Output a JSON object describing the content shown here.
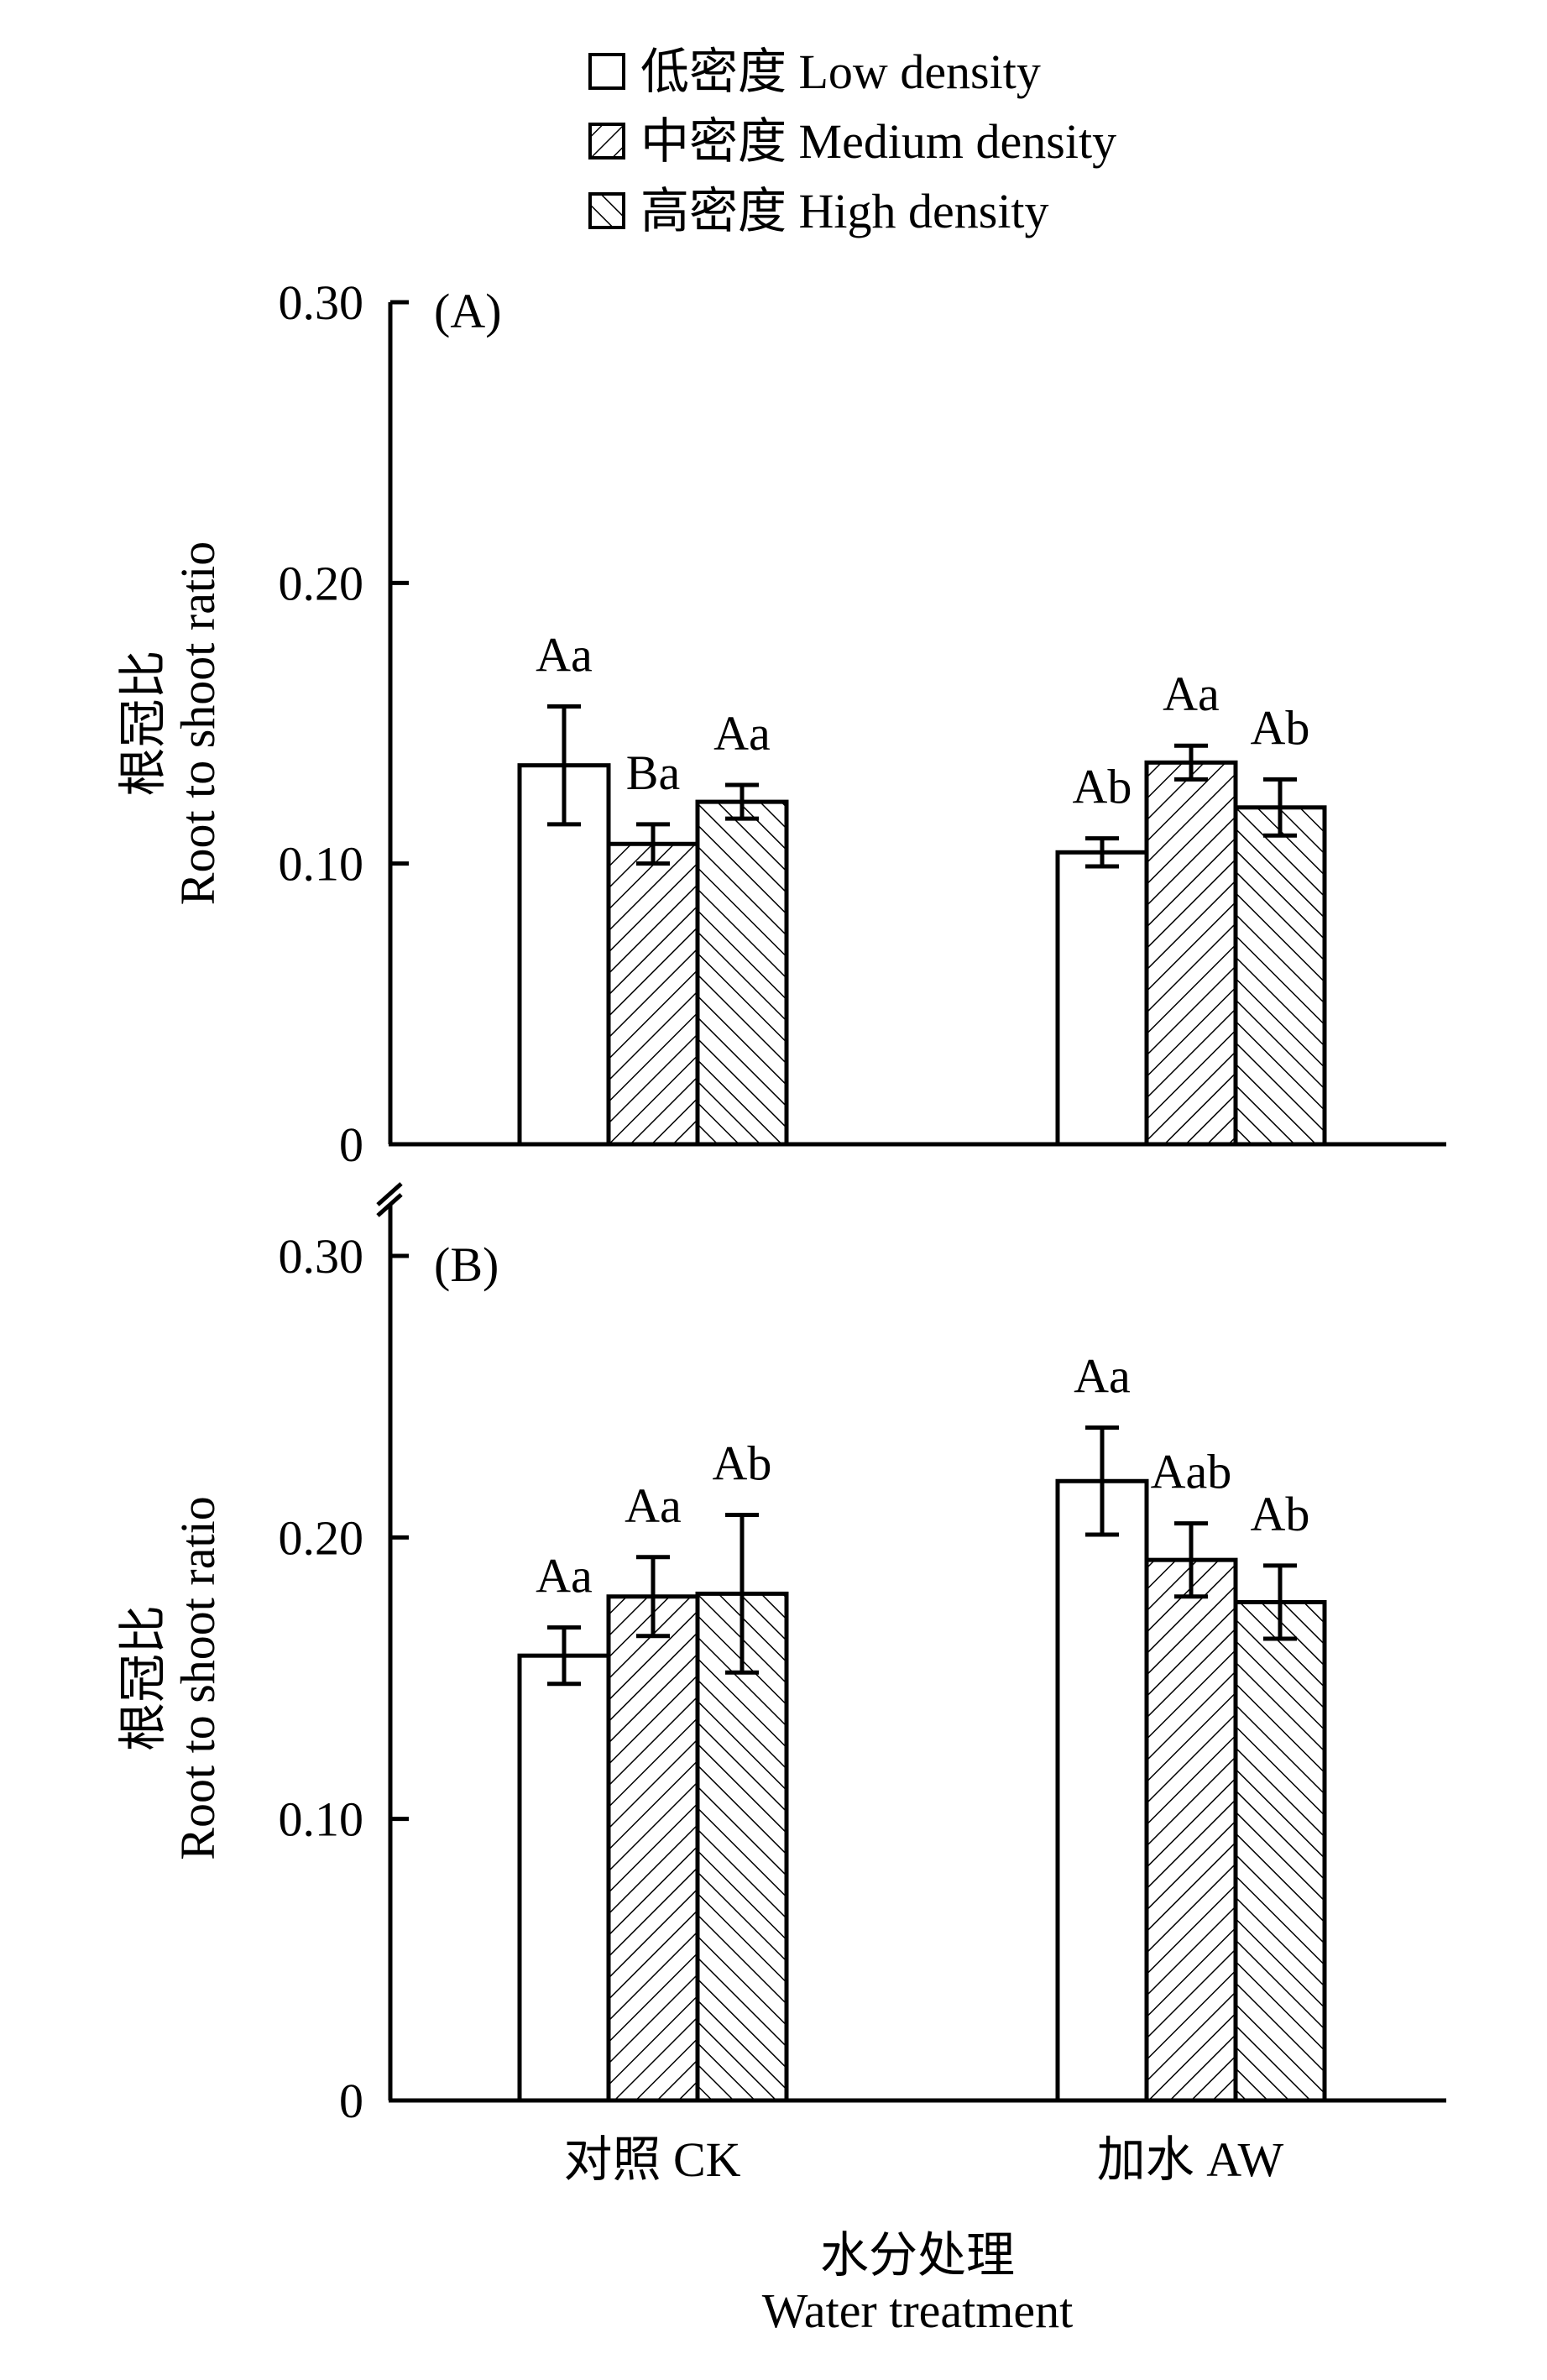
{
  "chart_data": [
    {
      "type": "bar",
      "panel_label": "(A)",
      "categories": [
        "对照 CK",
        "加水 AW"
      ],
      "ylabel_cn": "根冠比",
      "ylabel": "Root to shoot ratio",
      "ylim": [
        0,
        0.3
      ],
      "yticks": [
        "0",
        "0.10",
        "0.20",
        "0.30"
      ],
      "series": [
        {
          "name": "低密度 Low density",
          "pattern": "none",
          "values": [
            0.135,
            0.104
          ],
          "errors": [
            0.021,
            0.005
          ],
          "letters": [
            "Aa",
            "Ab"
          ]
        },
        {
          "name": "中密度 Medium density",
          "pattern": "forward",
          "values": [
            0.107,
            0.136
          ],
          "errors": [
            0.007,
            0.006
          ],
          "letters": [
            "Ba",
            "Aa"
          ]
        },
        {
          "name": "高密度 High density",
          "pattern": "backward",
          "values": [
            0.122,
            0.12
          ],
          "errors": [
            0.006,
            0.01
          ],
          "letters": [
            "Aa",
            "Ab"
          ]
        }
      ]
    },
    {
      "type": "bar",
      "panel_label": "(B)",
      "categories": [
        "对照 CK",
        "加水 AW"
      ],
      "ylabel_cn": "根冠比",
      "ylabel": "Root to shoot ratio",
      "ylim": [
        0,
        0.3
      ],
      "yticks": [
        "0",
        "0.10",
        "0.20",
        "0.30"
      ],
      "series": [
        {
          "name": "低密度 Low density",
          "pattern": "none",
          "values": [
            0.158,
            0.22
          ],
          "errors": [
            0.01,
            0.019
          ],
          "letters": [
            "Aa",
            "Aa"
          ]
        },
        {
          "name": "中密度 Medium density",
          "pattern": "forward",
          "values": [
            0.179,
            0.192
          ],
          "errors": [
            0.014,
            0.013
          ],
          "letters": [
            "Aa",
            "Aab"
          ]
        },
        {
          "name": "高密度 High density",
          "pattern": "backward",
          "values": [
            0.18,
            0.177
          ],
          "errors": [
            0.028,
            0.013
          ],
          "letters": [
            "Ab",
            "Ab"
          ]
        }
      ]
    }
  ],
  "legend": [
    "低密度 Low density",
    "中密度 Medium density",
    "高密度 High density"
  ],
  "xlabel_cn": "水分处理",
  "xlabel": "Water treatment",
  "colors": {
    "ink": "#000000",
    "fill": "#ffffff"
  }
}
